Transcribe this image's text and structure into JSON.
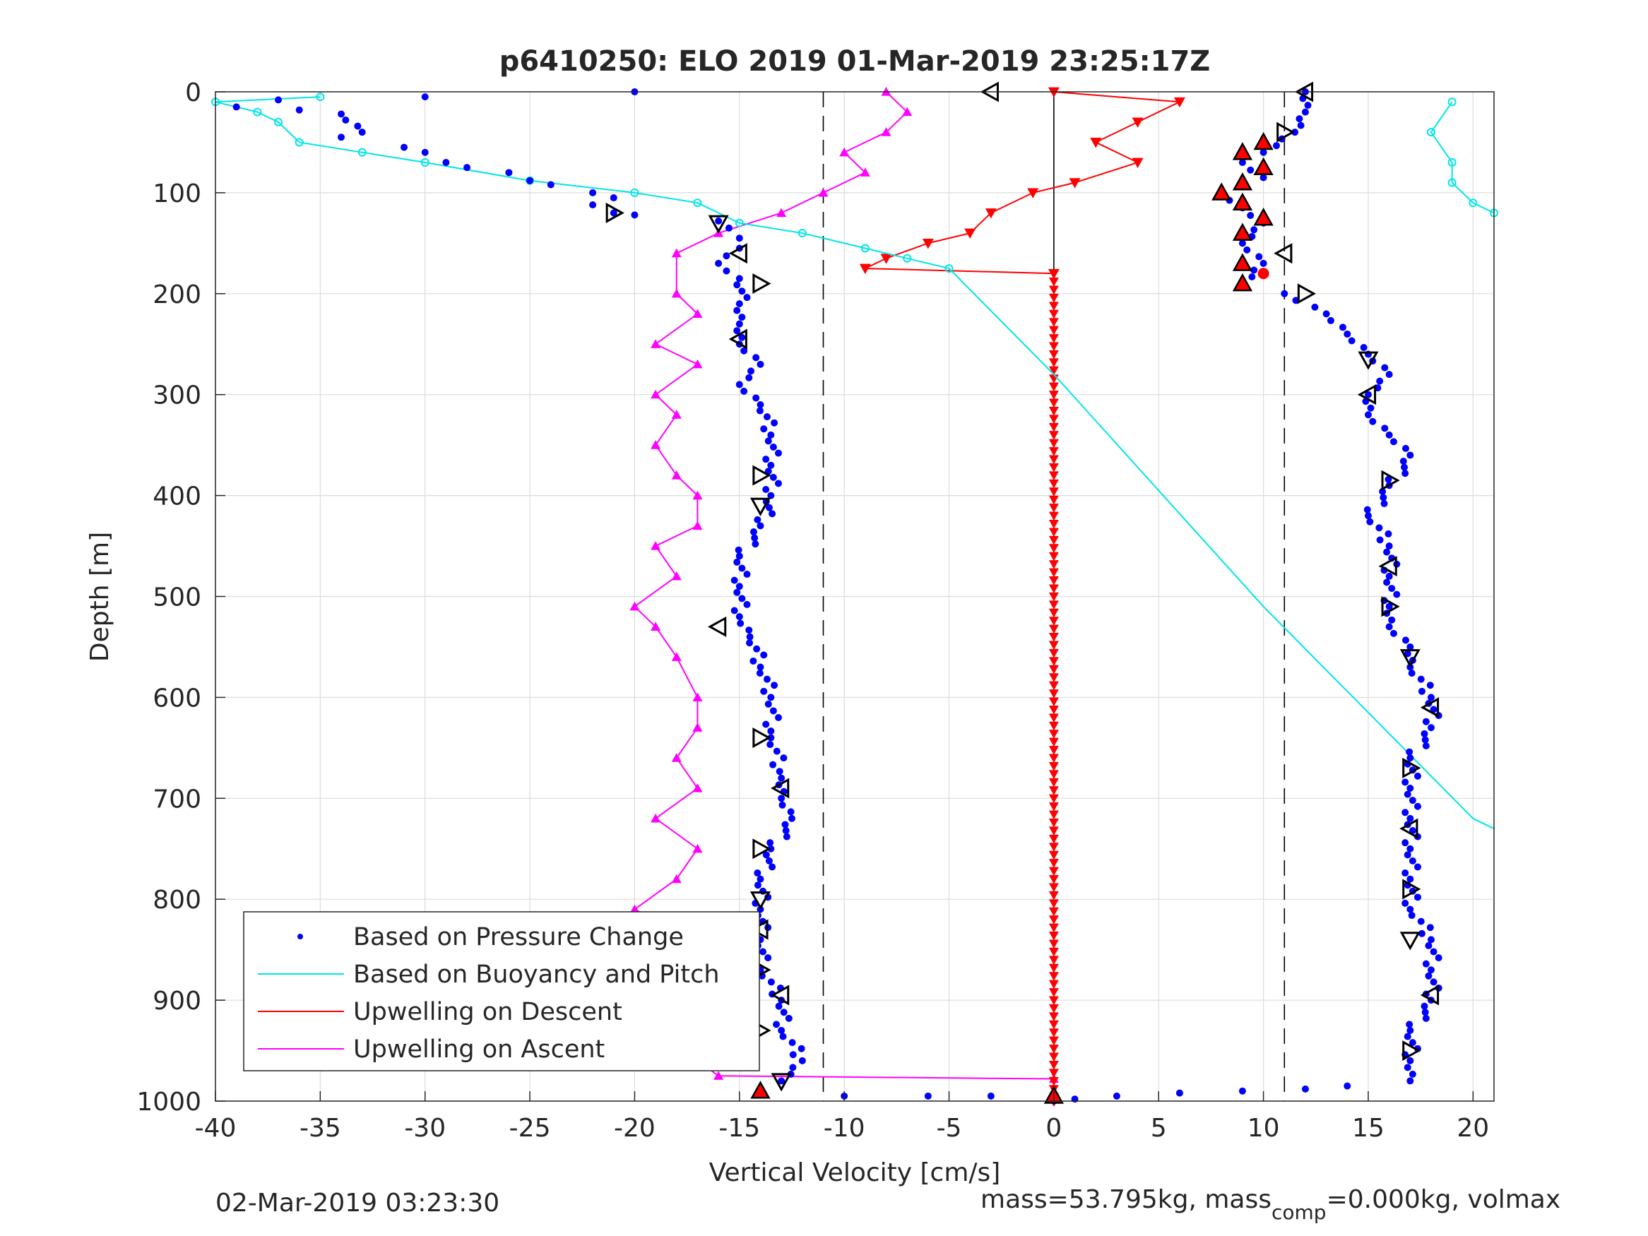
{
  "chart_data": {
    "type": "scatter",
    "title": "p6410250: ELO 2019 01-Mar-2019 23:25:17Z",
    "xlabel": "Vertical Velocity [cm/s]",
    "ylabel": "Depth [m]",
    "xlim": [
      -40,
      21
    ],
    "ylim": [
      0,
      1000
    ],
    "y_reversed": true,
    "grid": true,
    "legend_position": "bottom-left",
    "xticks": [
      -40,
      -35,
      -30,
      -25,
      -20,
      -15,
      -10,
      -5,
      0,
      5,
      10,
      15,
      20
    ],
    "yticks": [
      0,
      100,
      200,
      300,
      400,
      500,
      600,
      700,
      800,
      900,
      1000
    ],
    "colors": {
      "pressure": "#0000ff",
      "buoyancy": "#00e5e5",
      "descent": "#ff0000",
      "ascent": "#ff00ff",
      "reference": "#000000"
    },
    "reference_lines": [
      {
        "x": 0,
        "style": "solid",
        "y_to": 180
      },
      {
        "x": -11,
        "style": "dashed"
      },
      {
        "x": 11,
        "style": "dashed"
      }
    ],
    "series": [
      {
        "name": "Based on Pressure Change",
        "style": "dots",
        "descent_points": [
          [
            -20,
            0
          ],
          [
            -30,
            5
          ],
          [
            -39,
            15
          ],
          [
            -37,
            8
          ],
          [
            -36,
            18
          ],
          [
            -34,
            22
          ],
          [
            -33,
            40
          ],
          [
            -34,
            45
          ],
          [
            -31,
            55
          ],
          [
            -30,
            60
          ],
          [
            -29,
            70
          ],
          [
            -28,
            75
          ],
          [
            -26,
            80
          ],
          [
            -25,
            88
          ],
          [
            -24,
            92
          ],
          [
            -22,
            100
          ],
          [
            -21,
            105
          ],
          [
            -22,
            112
          ],
          [
            -21,
            120
          ],
          [
            -20,
            122
          ],
          [
            -16,
            128
          ],
          [
            -15.5,
            135
          ],
          [
            -15,
            145
          ],
          [
            -15,
            155
          ],
          [
            -16,
            170
          ],
          [
            -15,
            185
          ],
          [
            -15,
            210
          ],
          [
            -15,
            230
          ],
          [
            -15,
            250
          ],
          [
            -14,
            270
          ],
          [
            -15,
            290
          ],
          [
            -14,
            310
          ],
          [
            -13.5,
            340
          ],
          [
            -13.5,
            370
          ],
          [
            -13.5,
            400
          ],
          [
            -14,
            430
          ],
          [
            -15,
            460
          ],
          [
            -15,
            490
          ],
          [
            -15,
            520
          ],
          [
            -14.5,
            540
          ],
          [
            -14,
            570
          ],
          [
            -13.5,
            600
          ],
          [
            -13.5,
            640
          ],
          [
            -13,
            680
          ],
          [
            -13,
            700
          ],
          [
            -12.5,
            720
          ],
          [
            -13.5,
            750
          ],
          [
            -14,
            780
          ],
          [
            -14,
            810
          ],
          [
            -14,
            840
          ],
          [
            -14,
            870
          ],
          [
            -13,
            900
          ],
          [
            -13,
            930
          ],
          [
            -12,
            960
          ],
          [
            -13,
            980
          ],
          [
            -14,
            990
          ],
          [
            -10,
            995
          ],
          [
            -6,
            995
          ],
          [
            -3,
            995
          ],
          [
            0,
            1000
          ]
        ],
        "ascent_points": [
          [
            12,
            0
          ],
          [
            12,
            20
          ],
          [
            11.5,
            40
          ],
          [
            10,
            60
          ],
          [
            9,
            70
          ],
          [
            10,
            85
          ],
          [
            8,
            100
          ],
          [
            9,
            115
          ],
          [
            10,
            130
          ],
          [
            9,
            150
          ],
          [
            10,
            170
          ],
          [
            9,
            190
          ],
          [
            11,
            200
          ],
          [
            13,
            220
          ],
          [
            14,
            240
          ],
          [
            15,
            260
          ],
          [
            16,
            280
          ],
          [
            15,
            300
          ],
          [
            15,
            320
          ],
          [
            16,
            340
          ],
          [
            17,
            360
          ],
          [
            16,
            390
          ],
          [
            15,
            420
          ],
          [
            16,
            450
          ],
          [
            16,
            480
          ],
          [
            16,
            510
          ],
          [
            16,
            530
          ],
          [
            17,
            550
          ],
          [
            17,
            570
          ],
          [
            18,
            600
          ],
          [
            18,
            630
          ],
          [
            17,
            660
          ],
          [
            17,
            690
          ],
          [
            17,
            720
          ],
          [
            17,
            750
          ],
          [
            17,
            780
          ],
          [
            17,
            810
          ],
          [
            18,
            840
          ],
          [
            18,
            870
          ],
          [
            18,
            900
          ],
          [
            17,
            930
          ],
          [
            17,
            960
          ],
          [
            17,
            980
          ],
          [
            14,
            985
          ],
          [
            12,
            988
          ],
          [
            9,
            990
          ],
          [
            6,
            992
          ],
          [
            3,
            995
          ],
          [
            1,
            998
          ]
        ]
      },
      {
        "name": "Based on Buoyancy and Pitch",
        "style": "line-with-circles",
        "points": [
          [
            -35,
            5
          ],
          [
            -40,
            10
          ],
          [
            -38,
            20
          ],
          [
            -37,
            30
          ],
          [
            -36,
            50
          ],
          [
            -33,
            60
          ],
          [
            -30,
            70
          ],
          [
            -25,
            88
          ],
          [
            -20,
            100
          ],
          [
            -17,
            110
          ],
          [
            -15,
            130
          ],
          [
            -12,
            140
          ],
          [
            -9,
            155
          ],
          [
            -7,
            165
          ],
          [
            -5,
            175
          ],
          [
            0,
            280
          ],
          [
            10,
            510
          ],
          [
            20,
            720
          ],
          [
            21,
            730
          ]
        ],
        "surface_cluster": [
          [
            19,
            10
          ],
          [
            18,
            40
          ],
          [
            19,
            70
          ],
          [
            19,
            90
          ],
          [
            20,
            110
          ],
          [
            21,
            120
          ]
        ]
      },
      {
        "name": "Upwelling on Descent",
        "style": "line-with-down-triangles",
        "points": [
          [
            0,
            0
          ],
          [
            6,
            10
          ],
          [
            4,
            30
          ],
          [
            2,
            50
          ],
          [
            4,
            70
          ],
          [
            1,
            90
          ],
          [
            -1,
            100
          ],
          [
            -3,
            120
          ],
          [
            -4,
            140
          ],
          [
            -6,
            150
          ],
          [
            -8,
            165
          ],
          [
            -9,
            175
          ],
          [
            0,
            180
          ],
          [
            0,
            1000
          ]
        ]
      },
      {
        "name": "Upwelling on Ascent",
        "style": "line-with-up-triangles",
        "points": [
          [
            -8,
            0
          ],
          [
            -7,
            20
          ],
          [
            -8,
            40
          ],
          [
            -10,
            60
          ],
          [
            -9,
            80
          ],
          [
            -11,
            100
          ],
          [
            -13,
            120
          ],
          [
            -16,
            140
          ],
          [
            -18,
            160
          ],
          [
            -18,
            200
          ],
          [
            -17,
            220
          ],
          [
            -19,
            250
          ],
          [
            -17,
            270
          ],
          [
            -19,
            300
          ],
          [
            -18,
            320
          ],
          [
            -19,
            350
          ],
          [
            -18,
            380
          ],
          [
            -17,
            400
          ],
          [
            -17,
            430
          ],
          [
            -19,
            450
          ],
          [
            -18,
            480
          ],
          [
            -20,
            510
          ],
          [
            -19,
            530
          ],
          [
            -18,
            560
          ],
          [
            -17,
            600
          ],
          [
            -17,
            630
          ],
          [
            -18,
            660
          ],
          [
            -17,
            690
          ],
          [
            -19,
            720
          ],
          [
            -17,
            750
          ],
          [
            -18,
            780
          ],
          [
            -20,
            810
          ],
          [
            -17,
            840
          ],
          [
            -18,
            870
          ],
          [
            -19,
            900
          ],
          [
            -17,
            920
          ],
          [
            -18,
            940
          ],
          [
            -17,
            960
          ],
          [
            -16,
            975
          ],
          [
            0,
            978
          ]
        ]
      }
    ],
    "markers": {
      "open_triangles": [
        [
          -3,
          0
        ],
        [
          -21,
          120
        ],
        [
          -16,
          130
        ],
        [
          -15,
          160
        ],
        [
          -14,
          190
        ],
        [
          -15,
          245
        ],
        [
          -14,
          380
        ],
        [
          -14,
          410
        ],
        [
          -16,
          530
        ],
        [
          -14,
          640
        ],
        [
          -13,
          690
        ],
        [
          -14,
          750
        ],
        [
          -14,
          800
        ],
        [
          -14,
          830
        ],
        [
          -14,
          870
        ],
        [
          -13,
          895
        ],
        [
          -14,
          930
        ],
        [
          -13,
          980
        ],
        [
          12,
          0
        ],
        [
          11,
          40
        ],
        [
          11,
          160
        ],
        [
          12,
          200
        ],
        [
          15,
          265
        ],
        [
          15,
          300
        ],
        [
          16,
          385
        ],
        [
          16,
          470
        ],
        [
          16,
          510
        ],
        [
          17,
          560
        ],
        [
          18,
          610
        ],
        [
          17,
          670
        ],
        [
          17,
          730
        ],
        [
          17,
          790
        ],
        [
          17,
          840
        ],
        [
          18,
          895
        ],
        [
          17,
          950
        ]
      ],
      "red_up_triangles": [
        [
          10,
          50
        ],
        [
          9,
          60
        ],
        [
          10,
          75
        ],
        [
          9,
          90
        ],
        [
          8,
          100
        ],
        [
          9,
          110
        ],
        [
          10,
          125
        ],
        [
          9,
          140
        ],
        [
          9,
          170
        ],
        [
          9,
          190
        ],
        [
          -14,
          990
        ],
        [
          0,
          995
        ]
      ],
      "red_circles": [
        [
          10,
          180
        ]
      ]
    },
    "footer_left": "02-Mar-2019 03:23:30",
    "footer_right_prefix": "mass=53.795kg, mass",
    "footer_right_subscript": "comp",
    "footer_right_suffix": "=0.000kg, volmax"
  }
}
